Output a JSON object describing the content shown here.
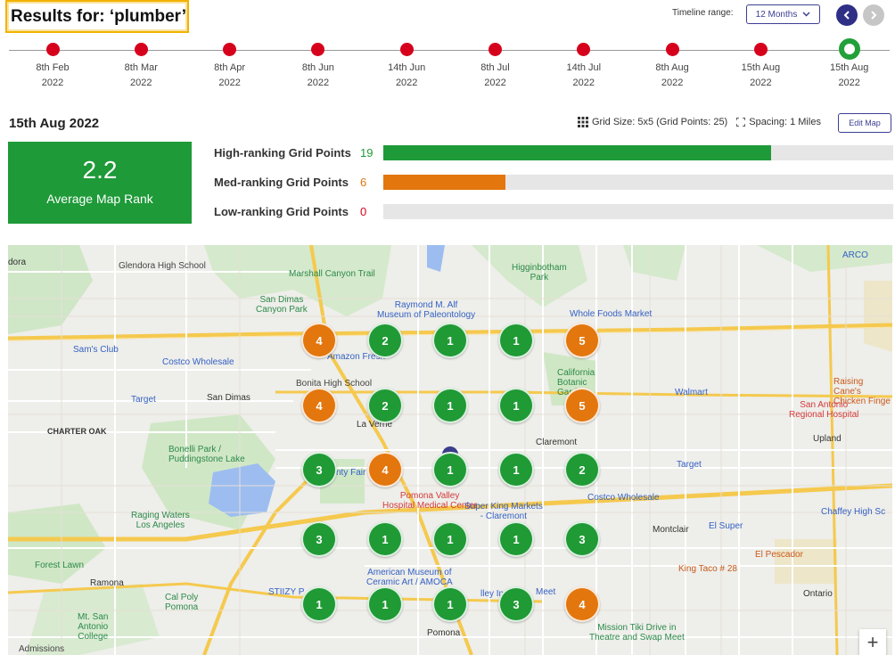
{
  "header": {
    "results_label": "Results for: ‘plumber’",
    "timeline_range_label": "Timeline range:",
    "timeline_range_value": "12 Months",
    "prev_icon": "chevron-left-icon",
    "next_icon": "chevron-right-icon"
  },
  "timeline": [
    {
      "day": "8th Feb",
      "year": "2022",
      "active": false
    },
    {
      "day": "8th Mar",
      "year": "2022",
      "active": false
    },
    {
      "day": "8th Apr",
      "year": "2022",
      "active": false
    },
    {
      "day": "8th Jun",
      "year": "2022",
      "active": false
    },
    {
      "day": "14th Jun",
      "year": "2022",
      "active": false
    },
    {
      "day": "8th Jul",
      "year": "2022",
      "active": false
    },
    {
      "day": "14th Jul",
      "year": "2022",
      "active": false
    },
    {
      "day": "8th Aug",
      "year": "2022",
      "active": false
    },
    {
      "day": "15th Aug",
      "year": "2022",
      "active": false
    },
    {
      "day": "15th Aug",
      "year": "2022",
      "active": true
    }
  ],
  "report": {
    "date_title": "15th Aug 2022",
    "grid_size": "Grid Size: 5x5 (Grid Points: 25)",
    "spacing": "Spacing: 1 Miles",
    "edit_map": "Edit Map",
    "avg_value": "2.2",
    "avg_label": "Average Map Rank"
  },
  "ranking": [
    {
      "label": "High-ranking Grid Points",
      "count": "19",
      "total": 25,
      "color": "#1e9a38"
    },
    {
      "label": "Med-ranking Grid Points",
      "count": "6",
      "total": 25,
      "color": "#e3760d"
    },
    {
      "label": "Low-ranking Grid Points",
      "count": "0",
      "total": 25,
      "color": "#d6001c"
    }
  ],
  "grid_ranks": [
    [
      "4",
      "2",
      "1",
      "1",
      "5"
    ],
    [
      "4",
      "2",
      "1",
      "1",
      "5"
    ],
    [
      "3",
      "4",
      "1",
      "1",
      "2"
    ],
    [
      "3",
      "1",
      "1",
      "1",
      "3"
    ],
    [
      "1",
      "1",
      "1",
      "3",
      "4"
    ]
  ],
  "map_labels": {
    "glendora_high": "Glendora High School",
    "marshall": "Marshall Canyon Trail",
    "higginbotham": "Higginbotham\nPark",
    "sandimas_canyon": "San Dimas\nCanyon Park",
    "raymond": "Raymond M. Alf\nMuseum of Paleontology",
    "whole_foods": "Whole Foods Market",
    "sams": "Sam's Club",
    "costco1": "Costco Wholesale",
    "amazon": "Amazon Fresh",
    "bonita": "Bonita High School",
    "california_botanic": "California\nBotanic\nGarden",
    "walmart": "Walmart",
    "raising": "Raising Cane's\nChicken Finge",
    "target1": "Target",
    "sandimas": "San Dimas",
    "laverne": "La Verne",
    "sanantonio": "San Antonio\nRegional Hospital",
    "charter": "CHARTER OAK",
    "bonelli": "Bonelli Park /\nPuddingstone Lake",
    "claremont": "Claremont",
    "upland": "Upland",
    "target2": "Target",
    "countyfair": "nty Fair",
    "pomona_valley": "Pomona Valley\nHospital Medical Center",
    "superking": "Super King Markets\n- Claremont",
    "costco2": "Costco Wholesale",
    "chaffey": "Chaffey High Sc",
    "raging": "Raging Waters\nLos Angeles",
    "montclair": "Montclair",
    "elsuper": "El Super",
    "forestlawn": "Forest Lawn",
    "elpescador": "El Pescador",
    "kingtaco": "King Taco # 28",
    "ramona": "Ramona",
    "american_museum": "American Museum of\nCeramic Art / AMOCA",
    "valleyindoor": "lley Indo",
    "meet": "Meet",
    "calpoly": "Cal Poly\nPomona",
    "stiizy": "STIIZY P",
    "ontario": "Ontario",
    "mtsanantonio": "Mt. San\nAntonio\nCollege",
    "pomona": "Pomona",
    "mission_tiki": "Mission Tiki Drive in\nTheatre and Swap Meet",
    "admissions": "Admissions",
    "arco": "ARCO",
    "dora": "dora",
    "zoom": "+"
  }
}
